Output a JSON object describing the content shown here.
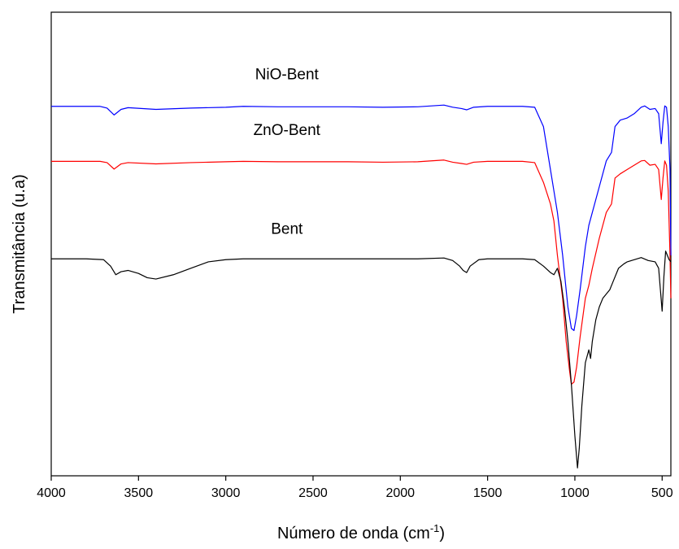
{
  "chart_data": {
    "type": "line",
    "title": "",
    "xlabel_main": "Número de onda (cm",
    "xlabel_sup": "-1",
    "xlabel_close": ")",
    "ylabel": "Transmitância (u.a)",
    "xlim": [
      4000,
      450
    ],
    "x_reversed": true,
    "ylim": [
      0,
      1
    ],
    "grid": false,
    "legend": "none",
    "xticks": [
      4000,
      3500,
      3000,
      2500,
      2000,
      1500,
      1000,
      500
    ],
    "xtick_labels": [
      "4000",
      "3500",
      "3000",
      "2500",
      "2000",
      "1500",
      "1000",
      "500"
    ],
    "series": [
      {
        "name": "NiO-Bent",
        "color": "#0000ff",
        "points": [
          [
            4000,
            0.847
          ],
          [
            3720,
            0.847
          ],
          [
            3680,
            0.843
          ],
          [
            3640,
            0.827
          ],
          [
            3600,
            0.84
          ],
          [
            3560,
            0.844
          ],
          [
            3400,
            0.84
          ],
          [
            3200,
            0.843
          ],
          [
            3000,
            0.845
          ],
          [
            2900,
            0.847
          ],
          [
            2700,
            0.846
          ],
          [
            2500,
            0.846
          ],
          [
            2300,
            0.846
          ],
          [
            2100,
            0.845
          ],
          [
            1900,
            0.846
          ],
          [
            1750,
            0.85
          ],
          [
            1700,
            0.845
          ],
          [
            1650,
            0.842
          ],
          [
            1620,
            0.839
          ],
          [
            1580,
            0.845
          ],
          [
            1500,
            0.847
          ],
          [
            1300,
            0.847
          ],
          [
            1230,
            0.845
          ],
          [
            1180,
            0.8
          ],
          [
            1140,
            0.7
          ],
          [
            1120,
            0.65
          ],
          [
            1100,
            0.6
          ],
          [
            1070,
            0.5
          ],
          [
            1040,
            0.38
          ],
          [
            1020,
            0.33
          ],
          [
            1005,
            0.325
          ],
          [
            990,
            0.36
          ],
          [
            970,
            0.42
          ],
          [
            940,
            0.52
          ],
          [
            920,
            0.57
          ],
          [
            900,
            0.6
          ],
          [
            860,
            0.66
          ],
          [
            820,
            0.72
          ],
          [
            790,
            0.74
          ],
          [
            770,
            0.8
          ],
          [
            740,
            0.815
          ],
          [
            700,
            0.82
          ],
          [
            660,
            0.83
          ],
          [
            620,
            0.845
          ],
          [
            600,
            0.848
          ],
          [
            570,
            0.84
          ],
          [
            540,
            0.842
          ],
          [
            520,
            0.83
          ],
          [
            505,
            0.76
          ],
          [
            495,
            0.81
          ],
          [
            485,
            0.848
          ],
          [
            475,
            0.845
          ],
          [
            465,
            0.8
          ],
          [
            455,
            0.7
          ],
          [
            450,
            0.5
          ]
        ]
      },
      {
        "name": "ZnO-Bent",
        "color": "#ff0000",
        "points": [
          [
            4000,
            0.719
          ],
          [
            3720,
            0.719
          ],
          [
            3680,
            0.716
          ],
          [
            3640,
            0.701
          ],
          [
            3600,
            0.713
          ],
          [
            3560,
            0.716
          ],
          [
            3400,
            0.713
          ],
          [
            3200,
            0.716
          ],
          [
            3000,
            0.718
          ],
          [
            2900,
            0.719
          ],
          [
            2700,
            0.718
          ],
          [
            2500,
            0.718
          ],
          [
            2300,
            0.718
          ],
          [
            2100,
            0.717
          ],
          [
            1900,
            0.718
          ],
          [
            1750,
            0.722
          ],
          [
            1700,
            0.717
          ],
          [
            1650,
            0.714
          ],
          [
            1620,
            0.712
          ],
          [
            1580,
            0.717
          ],
          [
            1500,
            0.719
          ],
          [
            1300,
            0.719
          ],
          [
            1230,
            0.716
          ],
          [
            1180,
            0.67
          ],
          [
            1140,
            0.62
          ],
          [
            1120,
            0.58
          ],
          [
            1100,
            0.5
          ],
          [
            1070,
            0.4
          ],
          [
            1050,
            0.3
          ],
          [
            1030,
            0.23
          ],
          [
            1020,
            0.2
          ],
          [
            1005,
            0.205
          ],
          [
            990,
            0.24
          ],
          [
            970,
            0.31
          ],
          [
            940,
            0.4
          ],
          [
            920,
            0.43
          ],
          [
            900,
            0.47
          ],
          [
            860,
            0.54
          ],
          [
            820,
            0.6
          ],
          [
            790,
            0.62
          ],
          [
            770,
            0.68
          ],
          [
            740,
            0.69
          ],
          [
            700,
            0.7
          ],
          [
            660,
            0.71
          ],
          [
            620,
            0.72
          ],
          [
            600,
            0.721
          ],
          [
            570,
            0.71
          ],
          [
            540,
            0.712
          ],
          [
            520,
            0.7
          ],
          [
            505,
            0.63
          ],
          [
            495,
            0.68
          ],
          [
            485,
            0.72
          ],
          [
            475,
            0.71
          ],
          [
            465,
            0.65
          ],
          [
            455,
            0.5
          ],
          [
            450,
            0.4
          ]
        ]
      },
      {
        "name": "Bent",
        "color": "#000000",
        "points": [
          [
            4000,
            0.492
          ],
          [
            3800,
            0.492
          ],
          [
            3700,
            0.49
          ],
          [
            3660,
            0.475
          ],
          [
            3630,
            0.455
          ],
          [
            3600,
            0.462
          ],
          [
            3560,
            0.465
          ],
          [
            3500,
            0.458
          ],
          [
            3450,
            0.448
          ],
          [
            3400,
            0.445
          ],
          [
            3300,
            0.455
          ],
          [
            3200,
            0.47
          ],
          [
            3100,
            0.485
          ],
          [
            3000,
            0.49
          ],
          [
            2900,
            0.492
          ],
          [
            2700,
            0.492
          ],
          [
            2500,
            0.492
          ],
          [
            2300,
            0.492
          ],
          [
            2100,
            0.492
          ],
          [
            1900,
            0.492
          ],
          [
            1750,
            0.494
          ],
          [
            1700,
            0.488
          ],
          [
            1660,
            0.475
          ],
          [
            1640,
            0.465
          ],
          [
            1620,
            0.46
          ],
          [
            1600,
            0.475
          ],
          [
            1550,
            0.49
          ],
          [
            1500,
            0.492
          ],
          [
            1300,
            0.492
          ],
          [
            1230,
            0.49
          ],
          [
            1180,
            0.475
          ],
          [
            1140,
            0.46
          ],
          [
            1120,
            0.455
          ],
          [
            1100,
            0.47
          ],
          [
            1080,
            0.44
          ],
          [
            1060,
            0.38
          ],
          [
            1040,
            0.3
          ],
          [
            1020,
            0.2
          ],
          [
            1000,
            0.08
          ],
          [
            985,
            0.005
          ],
          [
            975,
            0.05
          ],
          [
            960,
            0.15
          ],
          [
            940,
            0.25
          ],
          [
            920,
            0.28
          ],
          [
            910,
            0.26
          ],
          [
            900,
            0.3
          ],
          [
            880,
            0.35
          ],
          [
            860,
            0.38
          ],
          [
            840,
            0.4
          ],
          [
            820,
            0.41
          ],
          [
            800,
            0.42
          ],
          [
            780,
            0.44
          ],
          [
            750,
            0.47
          ],
          [
            720,
            0.48
          ],
          [
            700,
            0.485
          ],
          [
            660,
            0.49
          ],
          [
            620,
            0.495
          ],
          [
            580,
            0.488
          ],
          [
            540,
            0.485
          ],
          [
            520,
            0.47
          ],
          [
            510,
            0.42
          ],
          [
            500,
            0.37
          ],
          [
            490,
            0.45
          ],
          [
            480,
            0.51
          ],
          [
            470,
            0.5
          ],
          [
            460,
            0.49
          ],
          [
            450,
            0.485
          ]
        ]
      }
    ]
  }
}
